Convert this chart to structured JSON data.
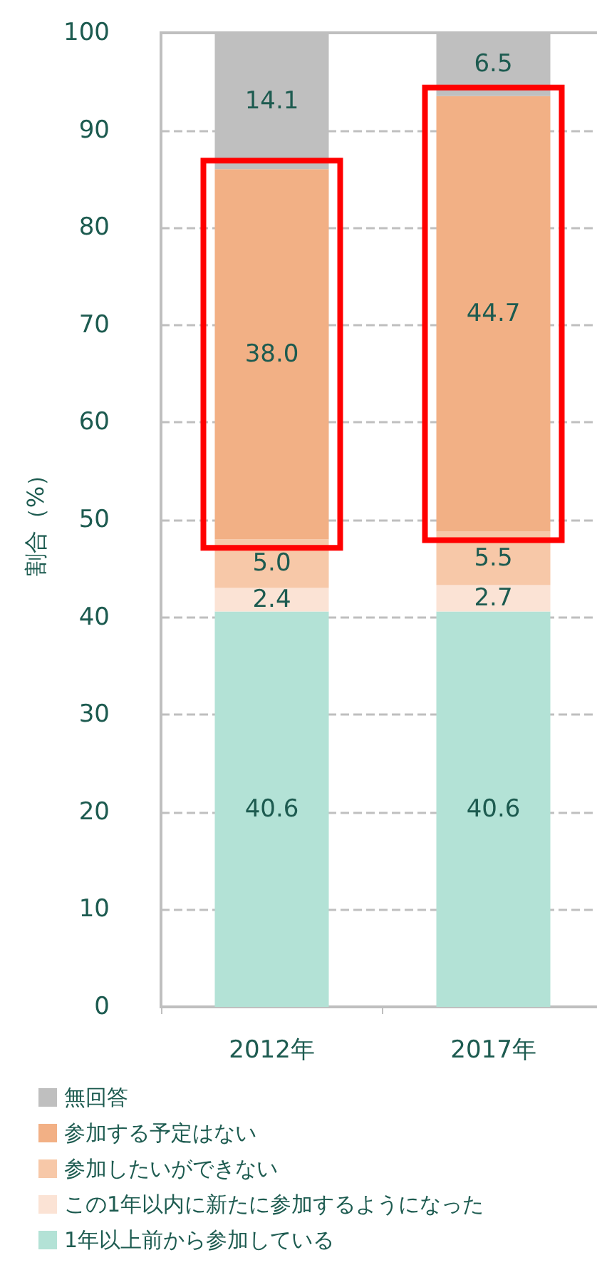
{
  "chart_data": {
    "type": "bar",
    "stacked": true,
    "ylabel": "割合（%）",
    "categories": [
      "2012年",
      "2017年"
    ],
    "ylim": [
      0,
      100
    ],
    "yticks": [
      0,
      10,
      20,
      30,
      40,
      50,
      60,
      70,
      80,
      90,
      100
    ],
    "grid": "y",
    "legend": "bottom",
    "series": [
      {
        "name": "1年以上前から参加している",
        "color": "#b3e2d6",
        "values": [
          40.6,
          40.6
        ],
        "value_labels": [
          "40.6",
          "40.6"
        ]
      },
      {
        "name": "この1年以内に新たに参加するようになった",
        "color": "#fbe3d5",
        "values": [
          2.4,
          2.7
        ],
        "value_labels": [
          "2.4",
          "2.7"
        ]
      },
      {
        "name": "参加したいができない",
        "color": "#f7c8a8",
        "values": [
          5.0,
          5.5
        ],
        "value_labels": [
          "5.0",
          "5.5"
        ]
      },
      {
        "name": "参加する予定はない",
        "color": "#f2b085",
        "values": [
          38.0,
          44.7
        ],
        "value_labels": [
          "38.0",
          "44.7"
        ]
      },
      {
        "name": "無回答",
        "color": "#bfbfbf",
        "values": [
          14.1,
          6.5
        ],
        "value_labels": [
          "14.1",
          "6.5"
        ]
      }
    ]
  }
}
